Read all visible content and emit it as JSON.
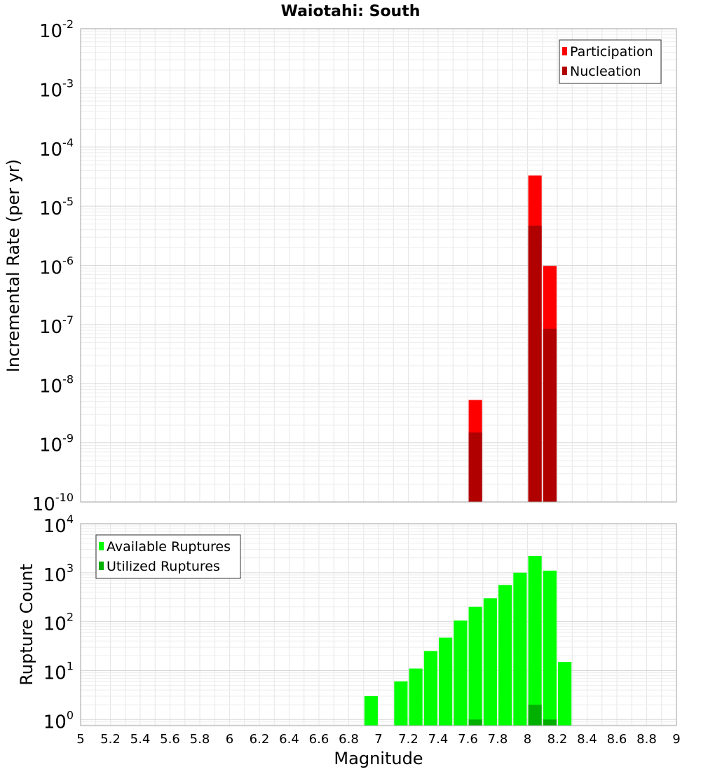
{
  "chart_data": [
    {
      "type": "bar",
      "title": "Waiotahi: South",
      "xlabel": "Magnitude",
      "ylabel": "Incremental Rate (per yr)",
      "yscale": "log",
      "xlim": [
        5,
        9
      ],
      "ylim": [
        1e-10,
        0.01
      ],
      "grid": true,
      "bar_width": 0.09,
      "y_tick_labels": [
        {
          "base": "10",
          "exp": "-10",
          "value": 1e-10
        },
        {
          "base": "10",
          "exp": "-9",
          "value": 1e-09
        },
        {
          "base": "10",
          "exp": "-8",
          "value": 1e-08
        },
        {
          "base": "10",
          "exp": "-7",
          "value": 1e-07
        },
        {
          "base": "10",
          "exp": "-6",
          "value": 1e-06
        },
        {
          "base": "10",
          "exp": "-5",
          "value": 1e-05
        },
        {
          "base": "10",
          "exp": "-4",
          "value": 0.0001
        },
        {
          "base": "10",
          "exp": "-3",
          "value": 0.001
        },
        {
          "base": "10",
          "exp": "-2",
          "value": 0.01
        }
      ],
      "legend": {
        "position": "top-right",
        "entries": [
          {
            "label": "Participation",
            "color": "#ff0000"
          },
          {
            "label": "Nucleation",
            "color": "#b00000"
          }
        ]
      },
      "series": [
        {
          "name": "Participation",
          "color": "#ff0000",
          "points": [
            {
              "x": 7.65,
              "y": 5.3e-09
            },
            {
              "x": 8.05,
              "y": 3.3e-05
            },
            {
              "x": 8.15,
              "y": 9.8e-07
            }
          ]
        },
        {
          "name": "Nucleation",
          "color": "#b00000",
          "points": [
            {
              "x": 7.65,
              "y": 1.5e-09
            },
            {
              "x": 8.05,
              "y": 4.7e-06
            },
            {
              "x": 8.15,
              "y": 8.5e-08
            }
          ]
        }
      ]
    },
    {
      "type": "bar",
      "title": "",
      "xlabel": "Magnitude",
      "ylabel": "Rupture Count",
      "yscale": "log",
      "xlim": [
        5,
        9
      ],
      "ylim": [
        0.75,
        10000
      ],
      "grid": true,
      "bar_width": 0.09,
      "x_tick_labels": [
        "5",
        "5.2",
        "5.4",
        "5.6",
        "5.8",
        "6",
        "6.2",
        "6.4",
        "6.6",
        "6.8",
        "7",
        "7.2",
        "7.4",
        "7.6",
        "7.8",
        "8",
        "8.2",
        "8.4",
        "8.6",
        "8.8",
        "9"
      ],
      "y_tick_labels": [
        {
          "base": "10",
          "exp": "0",
          "value": 1
        },
        {
          "base": "10",
          "exp": "1",
          "value": 10
        },
        {
          "base": "10",
          "exp": "2",
          "value": 100
        },
        {
          "base": "10",
          "exp": "3",
          "value": 1000
        },
        {
          "base": "10",
          "exp": "4",
          "value": 10000
        }
      ],
      "legend": {
        "position": "top-left",
        "entries": [
          {
            "label": "Available Ruptures",
            "color": "#00ff00"
          },
          {
            "label": "Utilized Ruptures",
            "color": "#00b000"
          }
        ]
      },
      "series": [
        {
          "name": "Available Ruptures",
          "color": "#00ff00",
          "points": [
            {
              "x": 6.95,
              "y": 3
            },
            {
              "x": 7.15,
              "y": 6
            },
            {
              "x": 7.25,
              "y": 11
            },
            {
              "x": 7.35,
              "y": 25
            },
            {
              "x": 7.45,
              "y": 47
            },
            {
              "x": 7.55,
              "y": 105
            },
            {
              "x": 7.65,
              "y": 200
            },
            {
              "x": 7.75,
              "y": 300
            },
            {
              "x": 7.85,
              "y": 560
            },
            {
              "x": 7.95,
              "y": 1000
            },
            {
              "x": 8.05,
              "y": 2200
            },
            {
              "x": 8.15,
              "y": 1100
            },
            {
              "x": 8.25,
              "y": 15
            }
          ]
        },
        {
          "name": "Utilized Ruptures",
          "color": "#00b000",
          "points": [
            {
              "x": 7.65,
              "y": 1
            },
            {
              "x": 8.05,
              "y": 2
            },
            {
              "x": 8.15,
              "y": 1
            }
          ]
        }
      ]
    }
  ]
}
